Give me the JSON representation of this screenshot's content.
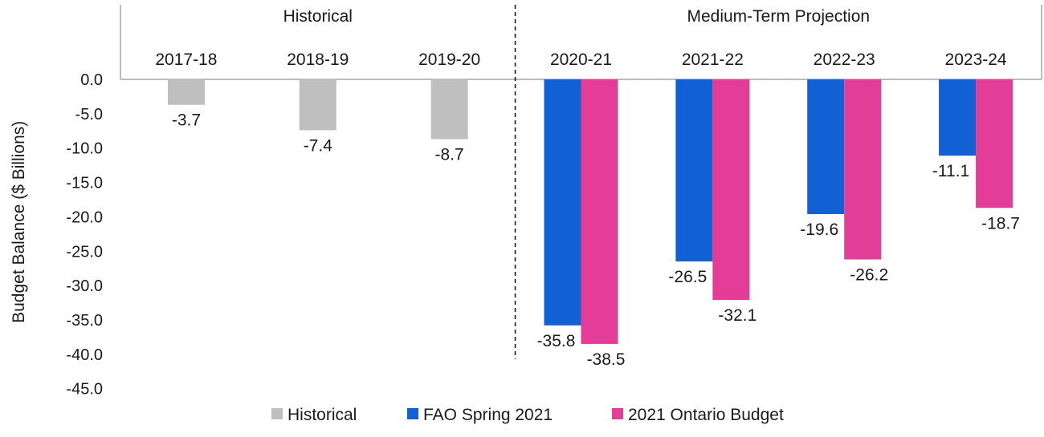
{
  "chart_data": {
    "type": "bar",
    "ylabel": "Budget Balance ($ Billions)",
    "ylim": [
      -45,
      0
    ],
    "yticks": [
      "0.0",
      "-5.0",
      "-10.0",
      "-15.0",
      "-20.0",
      "-25.0",
      "-30.0",
      "-35.0",
      "-40.0",
      "-45.0"
    ],
    "categories": [
      "2017-18",
      "2018-19",
      "2019-20",
      "2020-21",
      "2021-22",
      "2022-23",
      "2023-24"
    ],
    "sections": [
      {
        "label": "Historical",
        "categories": [
          "2017-18",
          "2018-19",
          "2019-20"
        ]
      },
      {
        "label": "Medium-Term Projection",
        "categories": [
          "2020-21",
          "2021-22",
          "2022-23",
          "2023-24"
        ]
      }
    ],
    "series": [
      {
        "name": "Historical",
        "color": "#bfbfbf",
        "values": [
          -3.7,
          -7.4,
          -8.7,
          null,
          null,
          null,
          null
        ],
        "labels": [
          "-3.7",
          "-7.4",
          "-8.7",
          null,
          null,
          null,
          null
        ]
      },
      {
        "name": "FAO Spring 2021",
        "color": "#1160d4",
        "values": [
          null,
          null,
          null,
          -35.8,
          -26.5,
          -19.6,
          -11.1
        ],
        "labels": [
          null,
          null,
          null,
          "-35.8",
          "-26.5",
          "-19.6",
          "-11.1"
        ]
      },
      {
        "name": "2021 Ontario Budget",
        "color": "#e33d98",
        "values": [
          null,
          null,
          null,
          -38.5,
          -32.1,
          -26.2,
          -18.7
        ],
        "labels": [
          null,
          null,
          null,
          "-38.5",
          "-32.1",
          "-26.2",
          "-18.7"
        ]
      }
    ],
    "legend_position": "bottom",
    "grid": false
  }
}
